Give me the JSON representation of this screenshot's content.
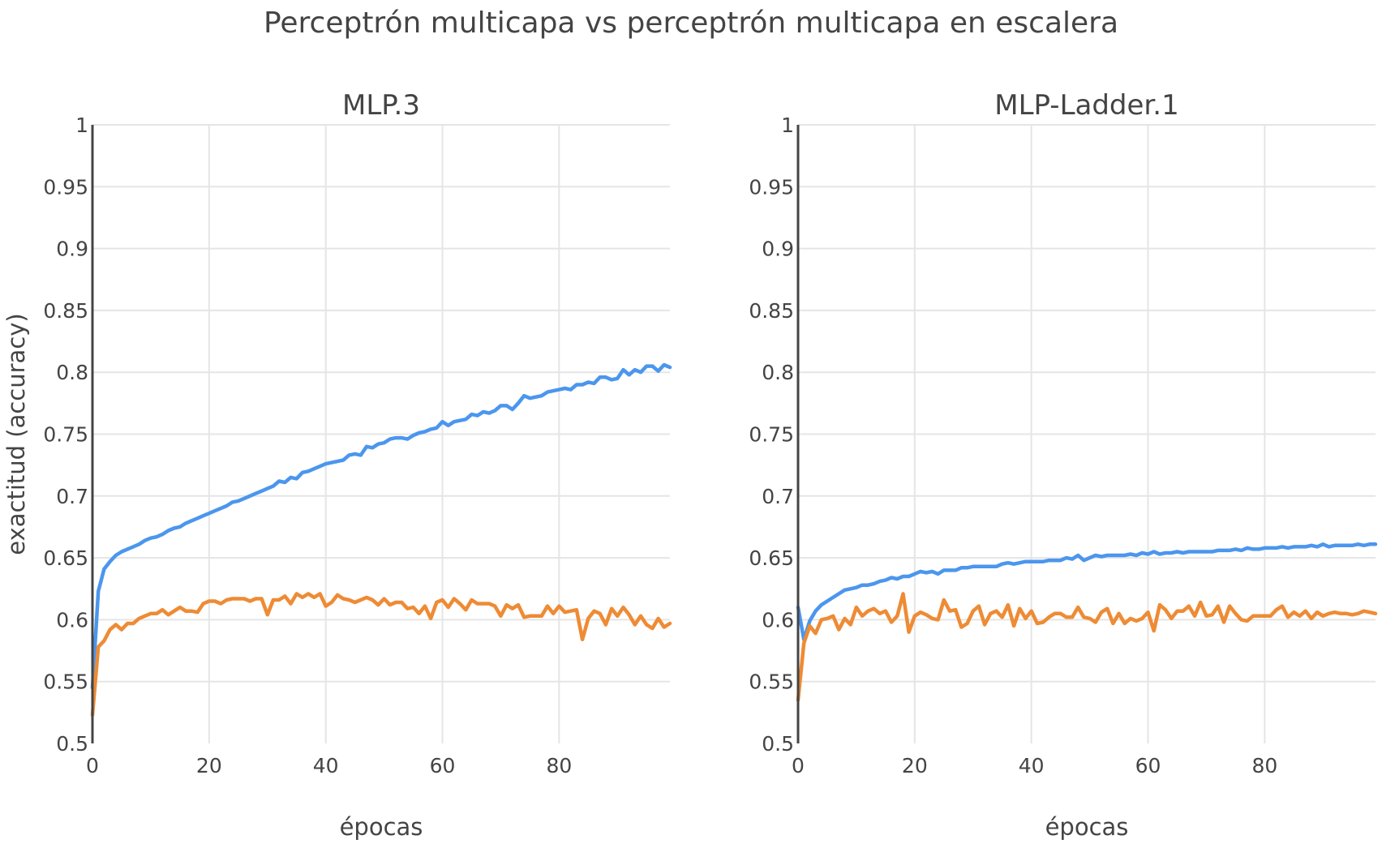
{
  "title": "Perceptrón multicapa vs perceptrón multicapa en escalera",
  "chart_data": [
    {
      "type": "line",
      "title": "MLP.3",
      "xlabel": "épocas",
      "ylabel": "exactitud (accuracy)",
      "xlim": [
        0,
        99
      ],
      "ylim": [
        0.5,
        1
      ],
      "x_ticks": [
        0,
        20,
        40,
        60,
        80
      ],
      "y_ticks": [
        0.5,
        0.55,
        0.6,
        0.65,
        0.7,
        0.75,
        0.8,
        0.85,
        0.9,
        0.95,
        1
      ],
      "y_tick_labels": [
        "0.5",
        "0.55",
        "0.6",
        "0.65",
        "0.7",
        "0.75",
        "0.8",
        "0.85",
        "0.9",
        "0.95",
        "1"
      ],
      "grid": true,
      "legend": "none",
      "x": [
        0,
        1,
        2,
        3,
        4,
        5,
        6,
        7,
        8,
        9,
        10,
        11,
        12,
        13,
        14,
        15,
        16,
        17,
        18,
        19,
        20,
        21,
        22,
        23,
        24,
        25,
        26,
        27,
        28,
        29,
        30,
        31,
        32,
        33,
        34,
        35,
        36,
        37,
        38,
        39,
        40,
        41,
        42,
        43,
        44,
        45,
        46,
        47,
        48,
        49,
        50,
        51,
        52,
        53,
        54,
        55,
        56,
        57,
        58,
        59,
        60,
        61,
        62,
        63,
        64,
        65,
        66,
        67,
        68,
        69,
        70,
        71,
        72,
        73,
        74,
        75,
        76,
        77,
        78,
        79,
        80,
        81,
        82,
        83,
        84,
        85,
        86,
        87,
        88,
        89,
        90,
        91,
        92,
        93,
        94,
        95,
        96,
        97,
        98,
        99
      ],
      "series": [
        {
          "color": "#4b96ee",
          "values": [
            0.545,
            0.623,
            0.641,
            0.647,
            0.652,
            0.655,
            0.657,
            0.659,
            0.661,
            0.664,
            0.666,
            0.667,
            0.669,
            0.672,
            0.674,
            0.675,
            0.678,
            0.68,
            0.682,
            0.684,
            0.686,
            0.688,
            0.69,
            0.692,
            0.695,
            0.696,
            0.698,
            0.7,
            0.702,
            0.704,
            0.706,
            0.708,
            0.712,
            0.711,
            0.715,
            0.714,
            0.719,
            0.72,
            0.722,
            0.724,
            0.726,
            0.727,
            0.728,
            0.729,
            0.733,
            0.734,
            0.733,
            0.74,
            0.739,
            0.742,
            0.743,
            0.746,
            0.747,
            0.747,
            0.746,
            0.749,
            0.751,
            0.752,
            0.754,
            0.755,
            0.76,
            0.757,
            0.76,
            0.761,
            0.762,
            0.766,
            0.765,
            0.768,
            0.767,
            0.769,
            0.773,
            0.773,
            0.77,
            0.775,
            0.781,
            0.779,
            0.78,
            0.781,
            0.784,
            0.785,
            0.786,
            0.787,
            0.786,
            0.79,
            0.79,
            0.792,
            0.791,
            0.796,
            0.796,
            0.794,
            0.795,
            0.802,
            0.798,
            0.802,
            0.8,
            0.805,
            0.805,
            0.801,
            0.806,
            0.804
          ]
        },
        {
          "color": "#ee8b35",
          "values": [
            0.523,
            0.578,
            0.583,
            0.592,
            0.596,
            0.592,
            0.597,
            0.597,
            0.601,
            0.603,
            0.605,
            0.605,
            0.608,
            0.604,
            0.607,
            0.61,
            0.607,
            0.607,
            0.606,
            0.613,
            0.615,
            0.615,
            0.613,
            0.616,
            0.617,
            0.617,
            0.617,
            0.615,
            0.617,
            0.617,
            0.604,
            0.616,
            0.616,
            0.619,
            0.613,
            0.621,
            0.618,
            0.621,
            0.618,
            0.621,
            0.611,
            0.614,
            0.62,
            0.617,
            0.616,
            0.614,
            0.616,
            0.618,
            0.616,
            0.612,
            0.617,
            0.612,
            0.614,
            0.614,
            0.609,
            0.61,
            0.605,
            0.611,
            0.601,
            0.614,
            0.616,
            0.61,
            0.617,
            0.613,
            0.608,
            0.616,
            0.613,
            0.613,
            0.613,
            0.611,
            0.603,
            0.612,
            0.609,
            0.612,
            0.602,
            0.603,
            0.603,
            0.603,
            0.611,
            0.605,
            0.611,
            0.606,
            0.607,
            0.608,
            0.584,
            0.601,
            0.607,
            0.605,
            0.596,
            0.609,
            0.603,
            0.61,
            0.604,
            0.596,
            0.603,
            0.596,
            0.593,
            0.601,
            0.594,
            0.597
          ]
        }
      ]
    },
    {
      "type": "line",
      "title": "MLP-Ladder.1",
      "xlabel": "épocas",
      "ylabel": "",
      "xlim": [
        0,
        99
      ],
      "ylim": [
        0.5,
        1
      ],
      "x_ticks": [
        0,
        20,
        40,
        60,
        80
      ],
      "y_ticks": [
        0.5,
        0.55,
        0.6,
        0.65,
        0.7,
        0.75,
        0.8,
        0.85,
        0.9,
        0.95,
        1
      ],
      "y_tick_labels": [
        "0.5",
        "0.55",
        "0.6",
        "0.65",
        "0.7",
        "0.75",
        "0.8",
        "0.85",
        "0.9",
        "0.95",
        "1"
      ],
      "grid": true,
      "legend": "none",
      "x": [
        0,
        1,
        2,
        3,
        4,
        5,
        6,
        7,
        8,
        9,
        10,
        11,
        12,
        13,
        14,
        15,
        16,
        17,
        18,
        19,
        20,
        21,
        22,
        23,
        24,
        25,
        26,
        27,
        28,
        29,
        30,
        31,
        32,
        33,
        34,
        35,
        36,
        37,
        38,
        39,
        40,
        41,
        42,
        43,
        44,
        45,
        46,
        47,
        48,
        49,
        50,
        51,
        52,
        53,
        54,
        55,
        56,
        57,
        58,
        59,
        60,
        61,
        62,
        63,
        64,
        65,
        66,
        67,
        68,
        69,
        70,
        71,
        72,
        73,
        74,
        75,
        76,
        77,
        78,
        79,
        80,
        81,
        82,
        83,
        84,
        85,
        86,
        87,
        88,
        89,
        90,
        91,
        92,
        93,
        94,
        95,
        96,
        97,
        98,
        99
      ],
      "series": [
        {
          "color": "#4b96ee",
          "values": [
            0.61,
            0.584,
            0.599,
            0.607,
            0.612,
            0.615,
            0.618,
            0.621,
            0.624,
            0.625,
            0.626,
            0.628,
            0.628,
            0.629,
            0.631,
            0.632,
            0.634,
            0.633,
            0.635,
            0.635,
            0.637,
            0.639,
            0.638,
            0.639,
            0.637,
            0.64,
            0.64,
            0.64,
            0.642,
            0.642,
            0.643,
            0.643,
            0.643,
            0.643,
            0.643,
            0.645,
            0.646,
            0.645,
            0.646,
            0.647,
            0.647,
            0.647,
            0.647,
            0.648,
            0.648,
            0.648,
            0.65,
            0.649,
            0.652,
            0.648,
            0.65,
            0.652,
            0.651,
            0.652,
            0.652,
            0.652,
            0.652,
            0.653,
            0.652,
            0.654,
            0.653,
            0.655,
            0.653,
            0.654,
            0.654,
            0.655,
            0.654,
            0.655,
            0.655,
            0.655,
            0.655,
            0.655,
            0.656,
            0.656,
            0.656,
            0.657,
            0.656,
            0.658,
            0.657,
            0.657,
            0.658,
            0.658,
            0.658,
            0.659,
            0.658,
            0.659,
            0.659,
            0.659,
            0.66,
            0.659,
            0.661,
            0.659,
            0.66,
            0.66,
            0.66,
            0.66,
            0.661,
            0.66,
            0.661,
            0.661
          ]
        },
        {
          "color": "#ee8b35",
          "values": [
            0.535,
            0.581,
            0.595,
            0.589,
            0.6,
            0.601,
            0.603,
            0.592,
            0.601,
            0.596,
            0.61,
            0.603,
            0.607,
            0.609,
            0.605,
            0.607,
            0.598,
            0.603,
            0.621,
            0.59,
            0.603,
            0.606,
            0.604,
            0.601,
            0.6,
            0.616,
            0.607,
            0.608,
            0.594,
            0.597,
            0.607,
            0.611,
            0.596,
            0.605,
            0.607,
            0.602,
            0.612,
            0.595,
            0.609,
            0.601,
            0.607,
            0.597,
            0.598,
            0.602,
            0.605,
            0.605,
            0.602,
            0.602,
            0.61,
            0.602,
            0.601,
            0.598,
            0.606,
            0.609,
            0.597,
            0.605,
            0.597,
            0.601,
            0.599,
            0.601,
            0.606,
            0.591,
            0.612,
            0.608,
            0.601,
            0.607,
            0.607,
            0.611,
            0.603,
            0.614,
            0.603,
            0.604,
            0.611,
            0.598,
            0.611,
            0.605,
            0.6,
            0.599,
            0.603,
            0.603,
            0.603,
            0.603,
            0.608,
            0.611,
            0.602,
            0.606,
            0.603,
            0.607,
            0.601,
            0.606,
            0.603,
            0.605,
            0.606,
            0.605,
            0.605,
            0.604,
            0.605,
            0.607,
            0.606,
            0.605
          ]
        }
      ]
    }
  ]
}
